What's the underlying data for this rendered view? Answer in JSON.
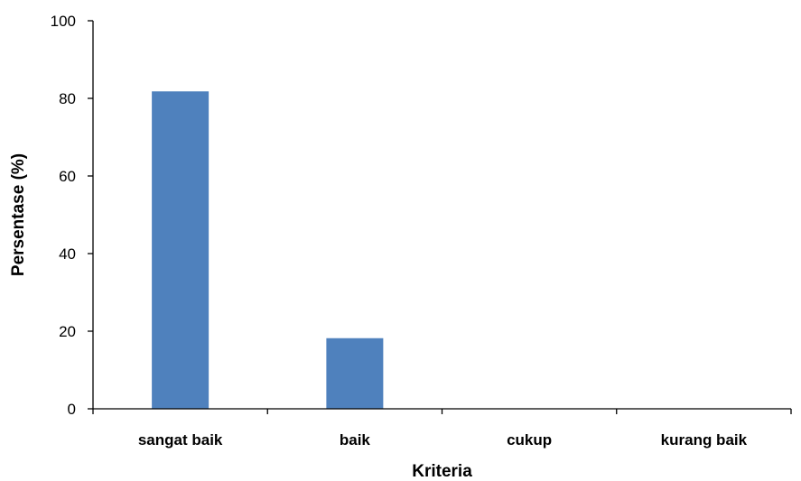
{
  "chart_data": {
    "type": "bar",
    "title": "",
    "xlabel": "Kriteria",
    "ylabel": "Persentase (%)",
    "categories": [
      "sangat baik",
      "baik",
      "cukup",
      "kurang baik"
    ],
    "values": [
      81.8,
      18.2,
      0,
      0
    ],
    "ylim": [
      0,
      100
    ],
    "yticks": [
      "0",
      "20",
      "40",
      "60",
      "80",
      "100"
    ],
    "grid": false,
    "legend": "none",
    "colors": {
      "bar": "#4F81BD",
      "axis": "#000000"
    }
  }
}
